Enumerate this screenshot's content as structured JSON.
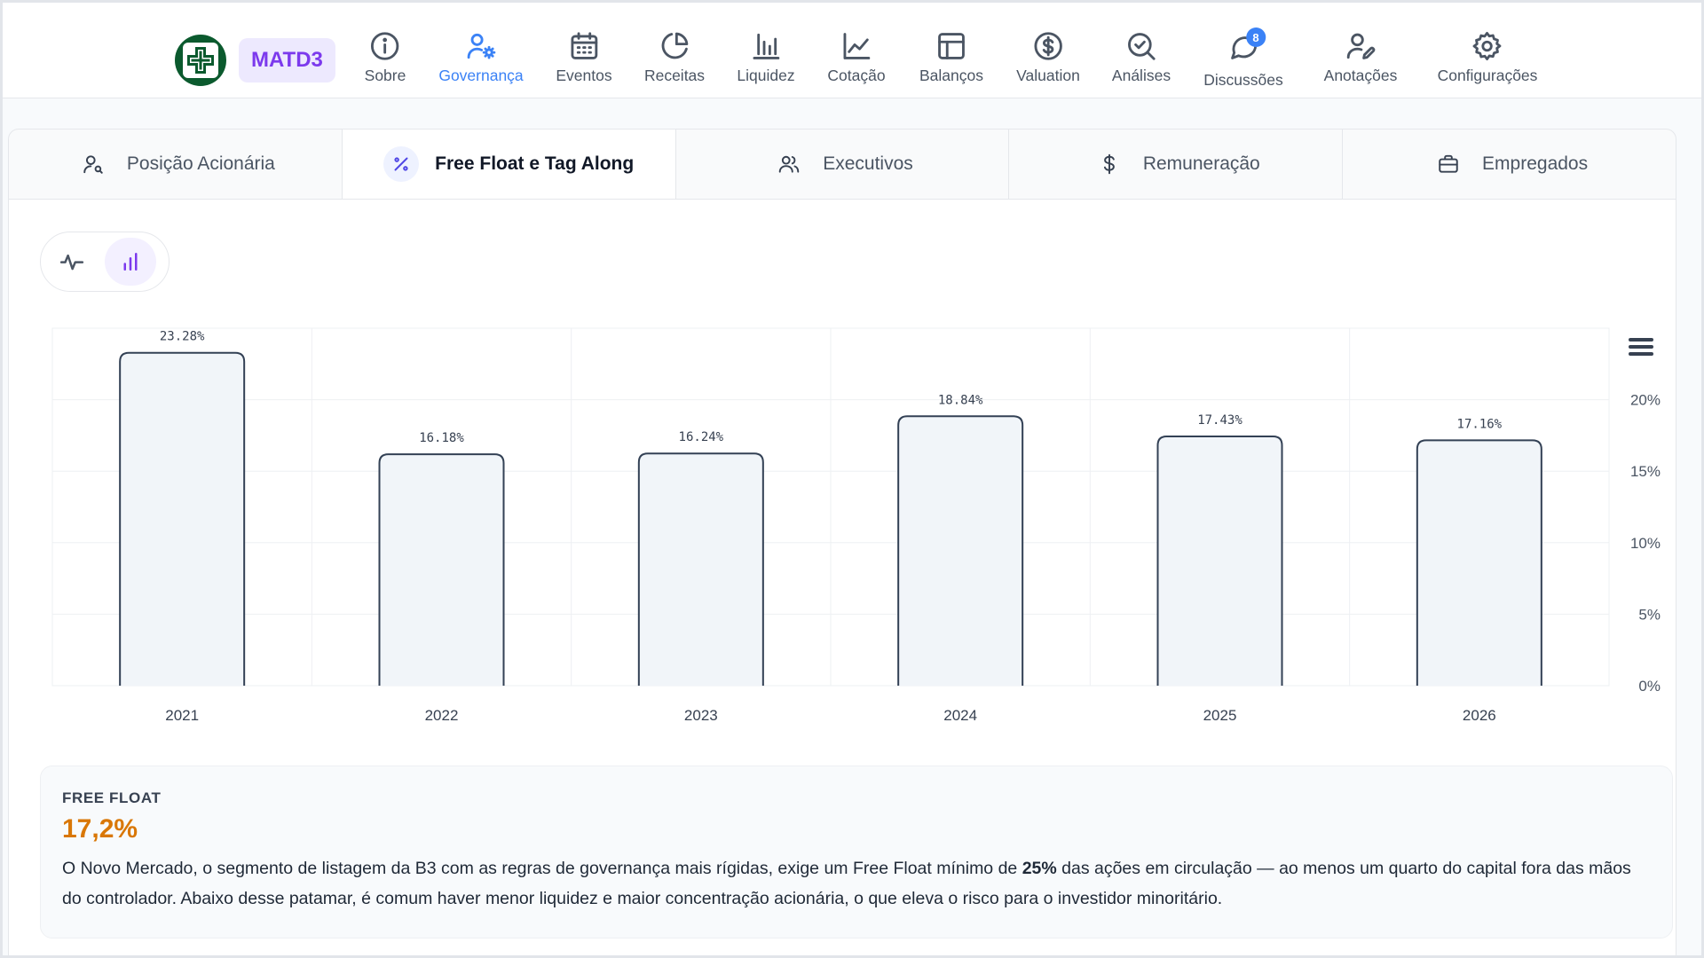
{
  "header": {
    "ticker": "MATD3",
    "nav": [
      {
        "label": "Sobre",
        "icon": "info-icon"
      },
      {
        "label": "Governança",
        "icon": "user-gear-icon",
        "active": true
      },
      {
        "label": "Eventos",
        "icon": "calendar-icon"
      },
      {
        "label": "Receitas",
        "icon": "pie-chart-icon"
      },
      {
        "label": "Liquidez",
        "icon": "bar-chart-icon"
      },
      {
        "label": "Cotação",
        "icon": "line-chart-icon"
      },
      {
        "label": "Balanços",
        "icon": "layout-icon"
      },
      {
        "label": "Valuation",
        "icon": "dollar-circle-icon"
      },
      {
        "label": "Análises",
        "icon": "search-check-icon"
      },
      {
        "label": "Discussões",
        "icon": "chat-icon",
        "badge": "8"
      },
      {
        "label": "Anotações",
        "icon": "user-pen-icon"
      },
      {
        "label": "Configurações",
        "icon": "gear-icon"
      }
    ]
  },
  "subtabs": [
    {
      "label": "Posição Acionária",
      "icon": "user-search-icon"
    },
    {
      "label": "Free Float e Tag Along",
      "icon": "percent-icon",
      "active": true
    },
    {
      "label": "Executivos",
      "icon": "users-icon"
    },
    {
      "label": "Remuneração",
      "icon": "dollar-icon"
    },
    {
      "label": "Empregados",
      "icon": "briefcase-icon"
    }
  ],
  "chart_data": {
    "type": "bar",
    "categories": [
      "2021",
      "2022",
      "2023",
      "2024",
      "2025",
      "2026"
    ],
    "values": [
      23.28,
      16.18,
      16.24,
      18.84,
      17.43,
      17.16
    ],
    "data_labels": [
      "23.28%",
      "16.18%",
      "16.24%",
      "18.84%",
      "17.43%",
      "17.16%"
    ],
    "y_ticks": [
      "0%",
      "5%",
      "10%",
      "15%",
      "20%"
    ],
    "ylim": [
      0,
      25
    ],
    "y_axis_side": "right",
    "grid": true,
    "bar_fill": "#f1f5f9",
    "bar_stroke": "#334155"
  },
  "info": {
    "title": "FREE FLOAT",
    "value": "17,2%",
    "text_before": "O Novo Mercado, o segmento de listagem da B3 com as regras de governança mais rígidas, exige um Free Float mínimo de ",
    "text_bold": "25%",
    "text_after": " das ações em circulação — ao menos um quarto do capital fora das mãos do controlador. Abaixo desse patamar, é comum haver menor liquidez e maior concentração acionária, o que eleva o risco para o investidor minoritário."
  },
  "colors": {
    "accent": "#3b82f6",
    "ticker_text": "#7c3aed",
    "highlight": "#d97706",
    "logo": "#0b5a2e"
  }
}
